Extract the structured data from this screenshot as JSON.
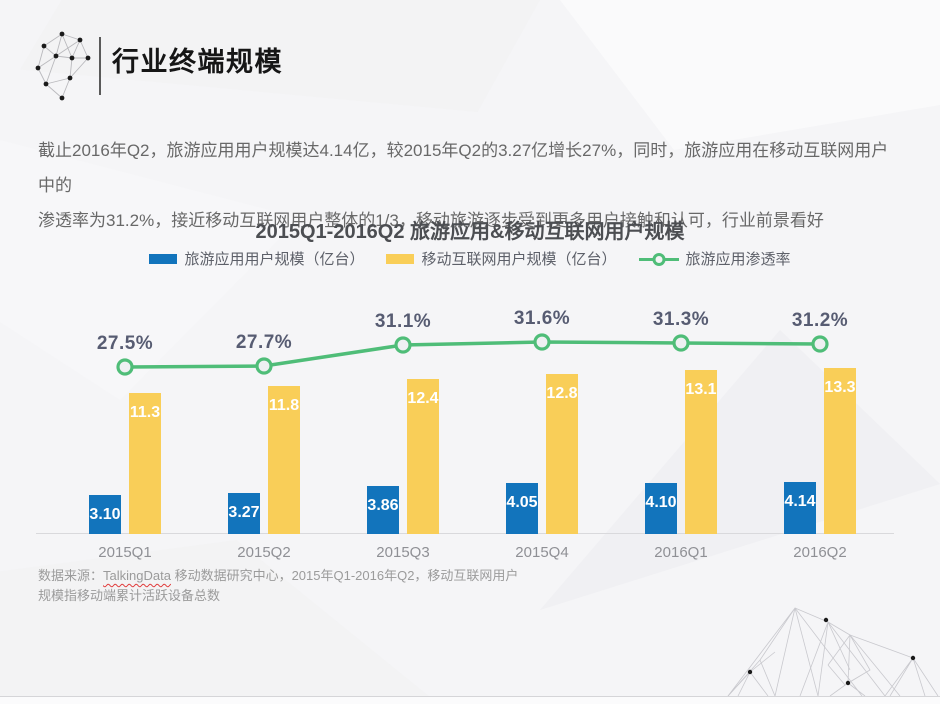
{
  "slide": {
    "header": {
      "title": "行业终端规模"
    },
    "paragraph": {
      "lines": [
        "截止2016年Q2，旅游应用用户规模达4.14亿，较2015年Q2的3.27亿增长27%，同时，旅游应用在移动互联网用户中的",
        "渗透率为31.2%，接近移动互联网用户整体的1/3，移动旅游逐步受到更多用户接触和认可，行业前景看好"
      ]
    },
    "footer": {
      "source_prefix": "数据来源：",
      "source_brand": "TalkingData",
      "source_suffix": " 移动数据研究中心，2015年Q1-2016年Q2，移动互联网用户",
      "line2": "规模指移动端累计活跃设备总数"
    }
  },
  "chart_data": {
    "type": "bar",
    "title": "2015Q1-2016Q2 旅游应用&移动互联网用户规模",
    "categories": [
      "2015Q1",
      "2015Q2",
      "2015Q3",
      "2015Q4",
      "2016Q1",
      "2016Q2"
    ],
    "series": [
      {
        "name": "旅游应用用户规模（亿台）",
        "kind": "bar",
        "color": "#1274bc",
        "values": [
          3.1,
          3.27,
          3.86,
          4.05,
          4.1,
          4.14
        ],
        "labels": [
          "3.10",
          "3.27",
          "3.86",
          "4.05",
          "4.10",
          "4.14"
        ]
      },
      {
        "name": "移动互联网用户规模（亿台）",
        "kind": "bar",
        "color": "#f9ce58",
        "values": [
          11.3,
          11.8,
          12.4,
          12.8,
          13.1,
          13.3
        ],
        "labels": [
          "11.3",
          "11.8",
          "12.4",
          "12.8",
          "13.1",
          "13.3"
        ]
      },
      {
        "name": "旅游应用渗透率",
        "kind": "line",
        "color": "#4fbd78",
        "values": [
          27.5,
          27.7,
          31.1,
          31.6,
          31.3,
          31.2
        ],
        "labels": [
          "27.5%",
          "27.7%",
          "31.1%",
          "31.6%",
          "31.3%",
          "31.2%"
        ]
      }
    ],
    "unit_bars": "亿台",
    "unit_line": "%",
    "ylim_bars": [
      0,
      14
    ],
    "grid": false,
    "legend_position": "top"
  },
  "colors": {
    "bar_blue": "#1274bc",
    "bar_yellow": "#f9ce58",
    "line_green": "#4fbd78",
    "percent_label": "#575c72",
    "spellcheck_underline_red": "#e03a3a"
  }
}
